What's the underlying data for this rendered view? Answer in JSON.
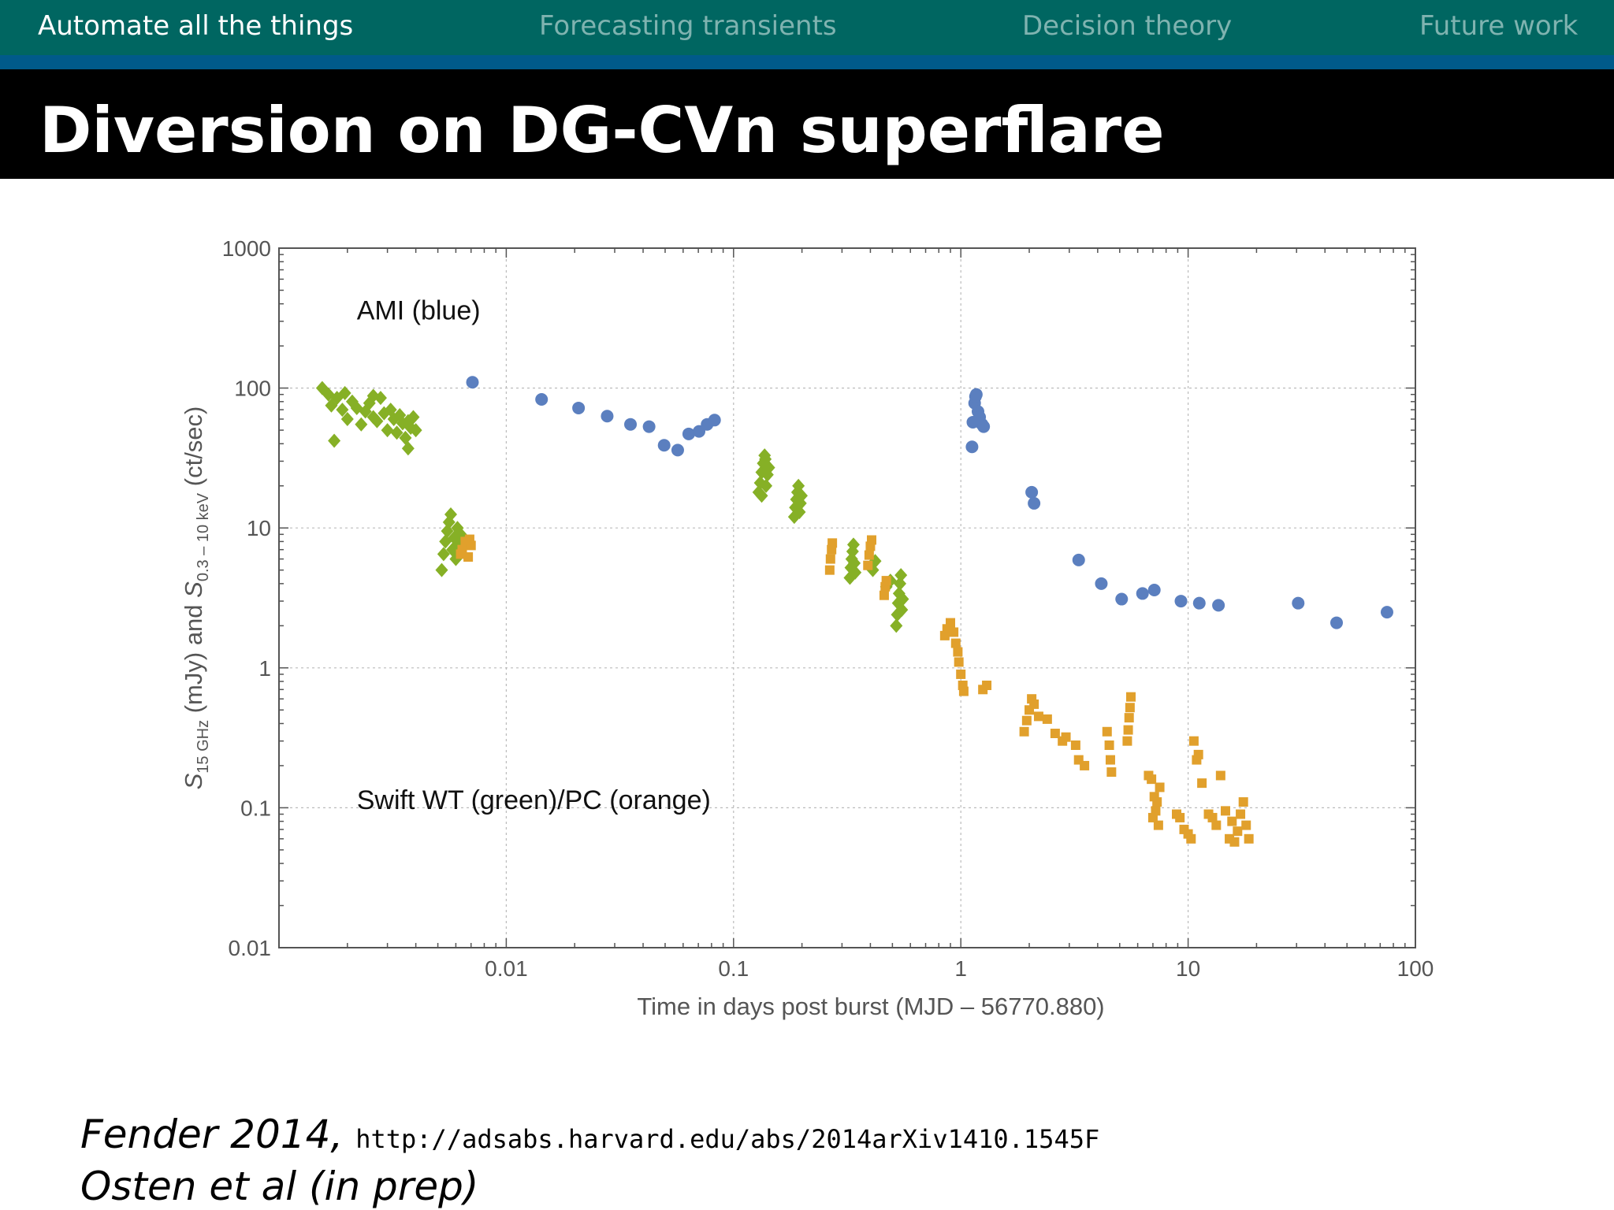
{
  "nav": {
    "items": [
      {
        "label": "Automate all the things",
        "active": true
      },
      {
        "label": "Forecasting transients",
        "active": false
      },
      {
        "label": "Decision theory",
        "active": false
      },
      {
        "label": "Future work",
        "active": false
      }
    ]
  },
  "slide_title": "Diversion on DG-CVn superflare",
  "footer": {
    "line1_cite": "Fender 2014,",
    "line1_url": "http://adsabs.harvard.edu/abs/2014arXiv1410.1545F",
    "line2_cite": "Osten et al (in prep)"
  },
  "colors": {
    "nav_bg": "#006661",
    "nav_stripe": "#005a8a",
    "ami": "#5b7fbf",
    "swift_wt": "#86b026",
    "swift_pc": "#e1a02c"
  },
  "chart_data": {
    "type": "scatter",
    "xscale": "log",
    "yscale": "log",
    "xlim": [
      0.001,
      100
    ],
    "ylim": [
      0.01,
      1000
    ],
    "xlabel": "Time in days post burst (MJD – 56770.880)",
    "ylabel": {
      "a": "S",
      "a_sub": "15 GHz",
      "b": " (mJy) and ",
      "c": "S",
      "c_sub": "0.3 – 10 keV",
      "d": " (ct/sec)"
    },
    "xticks": [
      {
        "value": 0.01,
        "label": "0.01"
      },
      {
        "value": 0.1,
        "label": "0.1"
      },
      {
        "value": 1,
        "label": "1"
      },
      {
        "value": 10,
        "label": "10"
      },
      {
        "value": 100,
        "label": "100"
      }
    ],
    "yticks": [
      {
        "value": 0.01,
        "label": "0.01"
      },
      {
        "value": 0.1,
        "label": "0.1"
      },
      {
        "value": 1,
        "label": "1"
      },
      {
        "value": 10,
        "label": "10"
      },
      {
        "value": 100,
        "label": "100"
      },
      {
        "value": 1000,
        "label": "1000"
      }
    ],
    "grid": true,
    "annotations": [
      {
        "text": "AMI (blue)",
        "x": 0.0022,
        "y": 310
      },
      {
        "text": "Swift WT (green)/PC (orange)",
        "x": 0.0022,
        "y": 0.098
      }
    ],
    "series": [
      {
        "key": "ami",
        "marker": "circle",
        "points": [
          [
            0.0071,
            110
          ],
          [
            0.0143,
            83
          ],
          [
            0.0208,
            72
          ],
          [
            0.0278,
            63
          ],
          [
            0.0352,
            55
          ],
          [
            0.0425,
            53
          ],
          [
            0.0495,
            39
          ],
          [
            0.0568,
            36
          ],
          [
            0.0635,
            47
          ],
          [
            0.0705,
            49
          ],
          [
            0.0765,
            55
          ],
          [
            0.0825,
            59
          ],
          [
            1.12,
            38
          ],
          [
            1.13,
            57
          ],
          [
            1.15,
            78
          ],
          [
            1.16,
            87
          ],
          [
            1.17,
            90
          ],
          [
            1.19,
            68
          ],
          [
            1.21,
            62
          ],
          [
            1.24,
            55
          ],
          [
            1.26,
            53
          ],
          [
            2.05,
            18
          ],
          [
            2.1,
            15
          ],
          [
            3.3,
            5.9
          ],
          [
            4.15,
            4.0
          ],
          [
            5.1,
            3.1
          ],
          [
            6.3,
            3.4
          ],
          [
            7.1,
            3.6
          ],
          [
            9.3,
            3.0
          ],
          [
            11.2,
            2.9
          ],
          [
            13.6,
            2.8
          ],
          [
            30.5,
            2.9
          ],
          [
            45,
            2.1
          ],
          [
            75,
            2.5
          ]
        ]
      },
      {
        "key": "swift_wt",
        "marker": "diamond",
        "points": [
          [
            0.00155,
            100
          ],
          [
            0.00165,
            90
          ],
          [
            0.0017,
            75
          ],
          [
            0.0018,
            85
          ],
          [
            0.0019,
            70
          ],
          [
            0.002,
            60
          ],
          [
            0.0021,
            80
          ],
          [
            0.0022,
            72
          ],
          [
            0.0023,
            55
          ],
          [
            0.0024,
            68
          ],
          [
            0.0025,
            78
          ],
          [
            0.0026,
            62
          ],
          [
            0.0027,
            58
          ],
          [
            0.0028,
            85
          ],
          [
            0.0029,
            66
          ],
          [
            0.003,
            50
          ],
          [
            0.0031,
            70
          ],
          [
            0.0032,
            60
          ],
          [
            0.0033,
            48
          ],
          [
            0.0034,
            64
          ],
          [
            0.0035,
            56
          ],
          [
            0.0036,
            44
          ],
          [
            0.0037,
            58
          ],
          [
            0.0038,
            52
          ],
          [
            0.0039,
            62
          ],
          [
            0.004,
            50
          ],
          [
            0.00175,
            42
          ],
          [
            0.0037,
            37
          ],
          [
            0.00195,
            92
          ],
          [
            0.0026,
            88
          ],
          [
            0.0052,
            5.0
          ],
          [
            0.0053,
            6.5
          ],
          [
            0.0054,
            8.0
          ],
          [
            0.0055,
            9.5
          ],
          [
            0.0056,
            11
          ],
          [
            0.0057,
            12.5
          ],
          [
            0.0058,
            7.0
          ],
          [
            0.0059,
            8.5
          ],
          [
            0.006,
            6.0
          ],
          [
            0.0061,
            10
          ],
          [
            0.0062,
            7.5
          ],
          [
            0.0063,
            9.0
          ],
          [
            0.129,
            18
          ],
          [
            0.131,
            21
          ],
          [
            0.133,
            25
          ],
          [
            0.135,
            29
          ],
          [
            0.137,
            33
          ],
          [
            0.139,
            20
          ],
          [
            0.141,
            24
          ],
          [
            0.143,
            27
          ],
          [
            0.133,
            17
          ],
          [
            0.138,
            31
          ],
          [
            0.185,
            12
          ],
          [
            0.187,
            14
          ],
          [
            0.189,
            16
          ],
          [
            0.191,
            18
          ],
          [
            0.193,
            20
          ],
          [
            0.195,
            13
          ],
          [
            0.197,
            15
          ],
          [
            0.199,
            17
          ],
          [
            0.325,
            4.4
          ],
          [
            0.328,
            5.2
          ],
          [
            0.331,
            6.0
          ],
          [
            0.334,
            6.8
          ],
          [
            0.337,
            7.6
          ],
          [
            0.34,
            5.6
          ],
          [
            0.343,
            4.8
          ],
          [
            0.41,
            5.0
          ],
          [
            0.42,
            5.8
          ],
          [
            0.47,
            3.8
          ],
          [
            0.49,
            4.2
          ],
          [
            0.52,
            2.0
          ],
          [
            0.525,
            2.4
          ],
          [
            0.53,
            2.9
          ],
          [
            0.535,
            3.4
          ],
          [
            0.54,
            4.0
          ],
          [
            0.545,
            4.6
          ],
          [
            0.55,
            2.6
          ],
          [
            0.555,
            3.1
          ]
        ]
      },
      {
        "key": "swift_pc",
        "marker": "square",
        "points": [
          [
            0.0064,
            7.0
          ],
          [
            0.0066,
            8.0
          ],
          [
            0.0068,
            6.2
          ],
          [
            0.007,
            7.5
          ],
          [
            0.0063,
            6.5
          ],
          [
            0.0069,
            8.3
          ],
          [
            0.265,
            5.0
          ],
          [
            0.267,
            6.0
          ],
          [
            0.27,
            7.0
          ],
          [
            0.272,
            7.8
          ],
          [
            0.39,
            5.4
          ],
          [
            0.395,
            6.4
          ],
          [
            0.4,
            7.4
          ],
          [
            0.405,
            8.2
          ],
          [
            0.46,
            3.3
          ],
          [
            0.465,
            3.8
          ],
          [
            0.47,
            4.2
          ],
          [
            0.85,
            1.7
          ],
          [
            0.87,
            1.9
          ],
          [
            0.9,
            2.1
          ],
          [
            0.93,
            1.8
          ],
          [
            0.95,
            1.5
          ],
          [
            0.97,
            1.3
          ],
          [
            0.98,
            1.1
          ],
          [
            1.0,
            0.9
          ],
          [
            1.02,
            0.75
          ],
          [
            1.03,
            0.68
          ],
          [
            1.25,
            0.7
          ],
          [
            1.3,
            0.75
          ],
          [
            1.9,
            0.35
          ],
          [
            1.95,
            0.42
          ],
          [
            2.0,
            0.5
          ],
          [
            2.05,
            0.6
          ],
          [
            2.1,
            0.55
          ],
          [
            2.2,
            0.45
          ],
          [
            2.4,
            0.43
          ],
          [
            2.6,
            0.34
          ],
          [
            2.8,
            0.3
          ],
          [
            2.9,
            0.32
          ],
          [
            3.2,
            0.28
          ],
          [
            3.3,
            0.22
          ],
          [
            3.5,
            0.2
          ],
          [
            4.4,
            0.35
          ],
          [
            4.5,
            0.28
          ],
          [
            4.55,
            0.22
          ],
          [
            4.6,
            0.18
          ],
          [
            5.4,
            0.3
          ],
          [
            5.45,
            0.36
          ],
          [
            5.5,
            0.44
          ],
          [
            5.55,
            0.52
          ],
          [
            5.6,
            0.62
          ],
          [
            6.7,
            0.17
          ],
          [
            6.9,
            0.16
          ],
          [
            7.1,
            0.12
          ],
          [
            7.3,
            0.11
          ],
          [
            7.5,
            0.14
          ],
          [
            7.0,
            0.085
          ],
          [
            7.2,
            0.095
          ],
          [
            7.4,
            0.075
          ],
          [
            8.9,
            0.09
          ],
          [
            9.2,
            0.085
          ],
          [
            9.6,
            0.07
          ],
          [
            10.0,
            0.065
          ],
          [
            10.3,
            0.06
          ],
          [
            10.6,
            0.3
          ],
          [
            10.9,
            0.22
          ],
          [
            11.1,
            0.24
          ],
          [
            11.5,
            0.15
          ],
          [
            12.3,
            0.09
          ],
          [
            12.8,
            0.085
          ],
          [
            13.3,
            0.075
          ],
          [
            13.9,
            0.17
          ],
          [
            14.6,
            0.095
          ],
          [
            15.2,
            0.06
          ],
          [
            15.6,
            0.08
          ],
          [
            16.0,
            0.057
          ],
          [
            16.5,
            0.068
          ],
          [
            17.0,
            0.09
          ],
          [
            17.5,
            0.11
          ],
          [
            18.0,
            0.075
          ],
          [
            18.5,
            0.06
          ]
        ]
      }
    ]
  }
}
